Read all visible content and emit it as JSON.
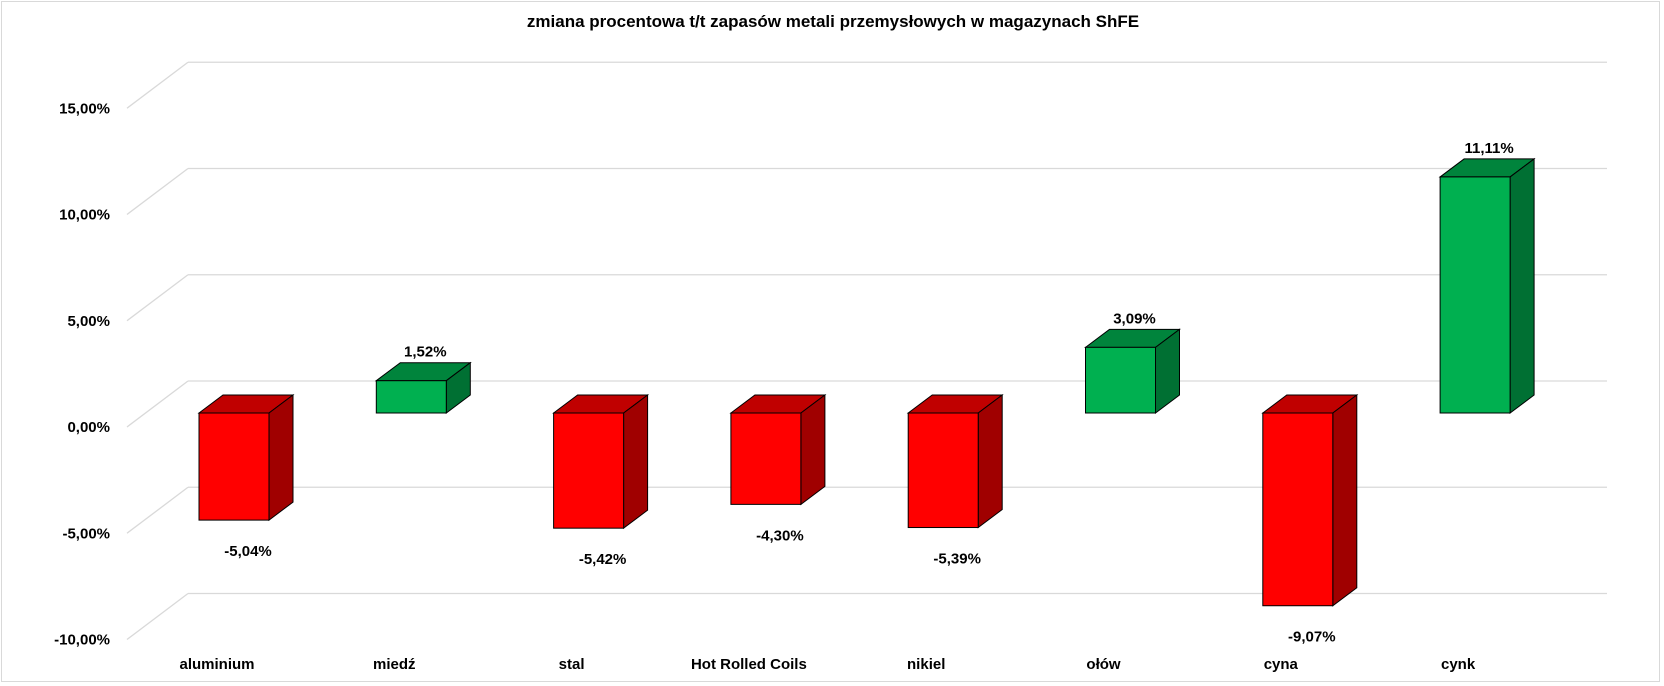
{
  "chart_data": {
    "type": "bar",
    "style": "3d-column",
    "title": "zmiana procentowa t/t zapasów metali przemysłowych w magazynach ShFE",
    "categories": [
      "aluminium",
      "miedź",
      "stal",
      "Hot Rolled Coils",
      "nikiel",
      "ołów",
      "cyna",
      "cynk"
    ],
    "values": [
      -5.04,
      1.52,
      -5.42,
      -4.3,
      -5.39,
      3.09,
      -9.07,
      11.11
    ],
    "value_labels": [
      "-5,04%",
      "1,52%",
      "-5,42%",
      "-4,30%",
      "-5,39%",
      "3,09%",
      "-9,07%",
      "11,11%"
    ],
    "ylim": [
      -10,
      15
    ],
    "yticks": [
      15,
      10,
      5,
      0,
      -5,
      -10
    ],
    "ytick_labels": [
      "15,00%",
      "10,00%",
      "5,00%",
      "0,00%",
      "-5,00%",
      "-10,00%"
    ],
    "xlabel": "",
    "ylabel": "",
    "grid": true,
    "legend": "none",
    "colors": {
      "negative": {
        "front": "#FF0000",
        "top": "#C00000",
        "side": "#A00000"
      },
      "positive": {
        "front": "#00B050",
        "top": "#00843C",
        "side": "#007033"
      },
      "grid": "#D9D9D9"
    }
  }
}
